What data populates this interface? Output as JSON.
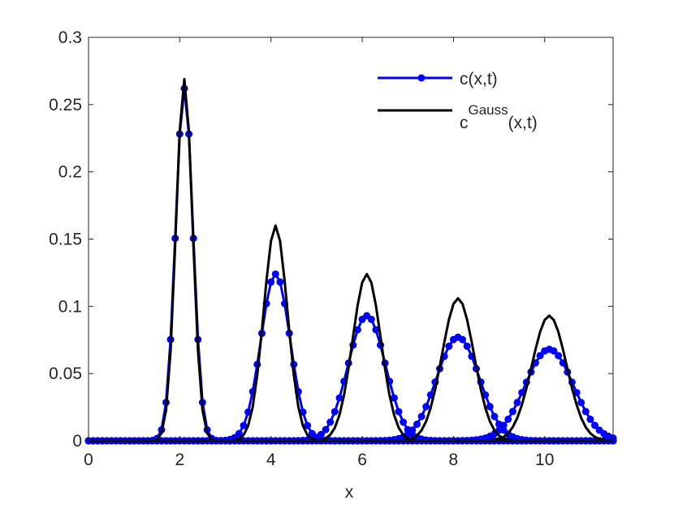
{
  "chart_data": {
    "type": "line",
    "title": "",
    "xlabel": "x",
    "ylabel": "",
    "xlim": [
      0,
      11.5
    ],
    "ylim": [
      0,
      0.3
    ],
    "xticks": [
      0,
      2,
      4,
      6,
      8,
      10
    ],
    "xtick_labels": [
      "0",
      "2",
      "4",
      "6",
      "8",
      "10"
    ],
    "yticks": [
      0,
      0.05,
      0.1,
      0.15,
      0.2,
      0.25,
      0.3
    ],
    "ytick_labels": [
      "0",
      "0.05",
      "0.1",
      "0.15",
      "0.2",
      "0.25",
      "0.3"
    ],
    "grid": false,
    "legend_position": "top-right",
    "x_step": 0.1,
    "series": [
      {
        "name": "c(x,t)",
        "legend_main": "c(x,t)",
        "color": "#0000ff",
        "marker": "circle",
        "peaks": [
          {
            "center": 2.1,
            "height": 0.262,
            "sigma": 0.19
          },
          {
            "center": 4.1,
            "height": 0.124,
            "sigma": 0.32
          },
          {
            "center": 6.1,
            "height": 0.093,
            "sigma": 0.41
          },
          {
            "center": 8.1,
            "height": 0.077,
            "sigma": 0.47
          },
          {
            "center": 10.1,
            "height": 0.068,
            "sigma": 0.53
          }
        ]
      },
      {
        "name": "c^Gauss(x,t)",
        "legend_main": "c",
        "legend_sup": "Gauss",
        "legend_tail": "(x,t)",
        "color": "#000000",
        "marker": "none",
        "peaks": [
          {
            "center": 2.1,
            "height": 0.269,
            "sigma": 0.18
          },
          {
            "center": 4.1,
            "height": 0.16,
            "sigma": 0.26
          },
          {
            "center": 6.1,
            "height": 0.124,
            "sigma": 0.31
          },
          {
            "center": 8.1,
            "height": 0.106,
            "sigma": 0.35
          },
          {
            "center": 10.1,
            "height": 0.093,
            "sigma": 0.38
          }
        ]
      }
    ]
  }
}
